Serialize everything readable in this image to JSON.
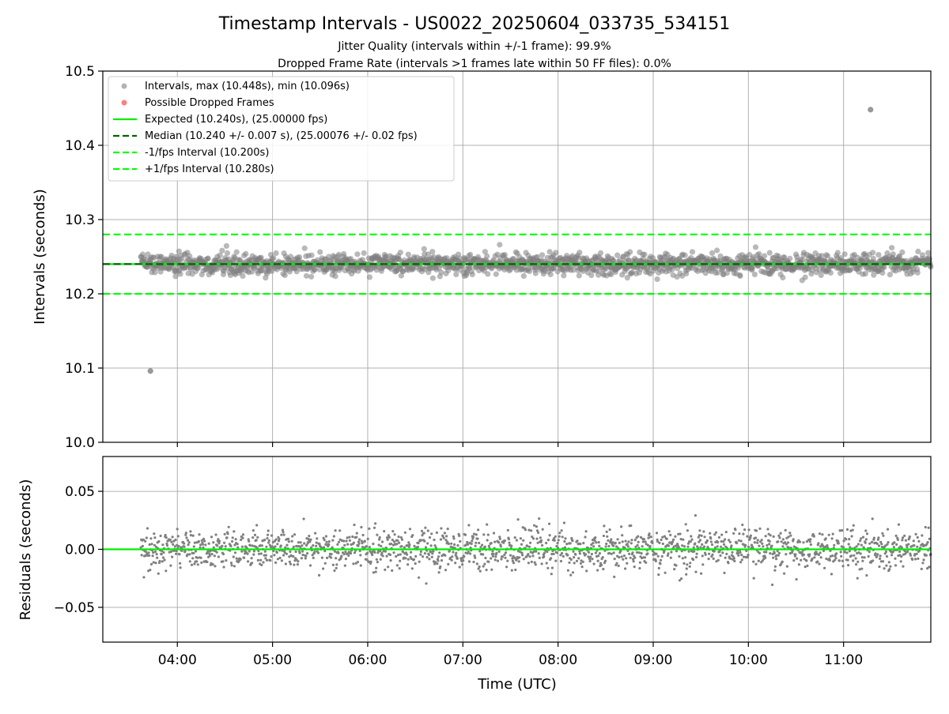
{
  "figure": {
    "title": "Timestamp Intervals - US0022_20250604_033735_534151",
    "subtitle_1": "Jitter Quality (intervals within +/-1 frame): 99.9%",
    "subtitle_2": "Dropped Frame Rate (intervals >1 frames late within 50 FF files): 0.0%"
  },
  "colors": {
    "points": "#808080",
    "dropped": "#ff0000",
    "expected": "#00ee00",
    "median": "#006400",
    "fps_bounds": "#00ff00",
    "grid": "#b0b0b0",
    "axis": "#000000"
  },
  "chart_data": [
    {
      "type": "scatter",
      "ylabel": "Intervals (seconds)",
      "ylim": [
        10.0,
        10.5
      ],
      "xlim": [
        "03:13",
        "11:55"
      ],
      "grid": true,
      "legend_placement": "top-left",
      "yticks": [
        "10.0",
        "10.1",
        "10.2",
        "10.3",
        "10.4",
        "10.5"
      ],
      "yticks_values": [
        10.0,
        10.1,
        10.2,
        10.3,
        10.4,
        10.5
      ],
      "time_range": [
        "03:37",
        "11:55"
      ],
      "series": [
        {
          "name": "Intervals, max (10.448s), min (10.096s)",
          "kind": "points",
          "center": 10.24,
          "spread": 0.007,
          "count": 1800,
          "outliers": [
            {
              "x": "03:43",
              "y": 10.096
            },
            {
              "x": "11:17",
              "y": 10.448
            }
          ]
        },
        {
          "name": "Possible Dropped Frames",
          "kind": "points",
          "values": []
        },
        {
          "name": "Expected (10.240s), (25.00000 fps)",
          "kind": "hline",
          "y": 10.24,
          "style": "solid"
        },
        {
          "name": "Median (10.240 +/- 0.007 s), (25.00076 +/- 0.02 fps)",
          "kind": "hline",
          "y": 10.24,
          "style": "dashed"
        },
        {
          "name": "-1/fps Interval (10.200s)",
          "kind": "hline",
          "y": 10.2,
          "style": "dashed"
        },
        {
          "name": "+1/fps Interval (10.280s)",
          "kind": "hline",
          "y": 10.28,
          "style": "dashed"
        }
      ]
    },
    {
      "type": "scatter",
      "ylabel": "Residuals (seconds)",
      "xlabel": "Time (UTC)",
      "ylim": [
        -0.08,
        0.08
      ],
      "xlim": [
        "03:13",
        "11:55"
      ],
      "grid": true,
      "yticks": [
        "0.05",
        "0.00",
        "−0.05"
      ],
      "yticks_values": [
        0.05,
        0.0,
        -0.05
      ],
      "xticks": [
        "04:00",
        "05:00",
        "06:00",
        "07:00",
        "08:00",
        "09:00",
        "10:00",
        "11:00"
      ],
      "series": [
        {
          "kind": "points",
          "center": 0.0,
          "spread": 0.009,
          "count": 1800
        },
        {
          "kind": "hline",
          "y": 0.0,
          "style": "solid"
        }
      ]
    }
  ]
}
